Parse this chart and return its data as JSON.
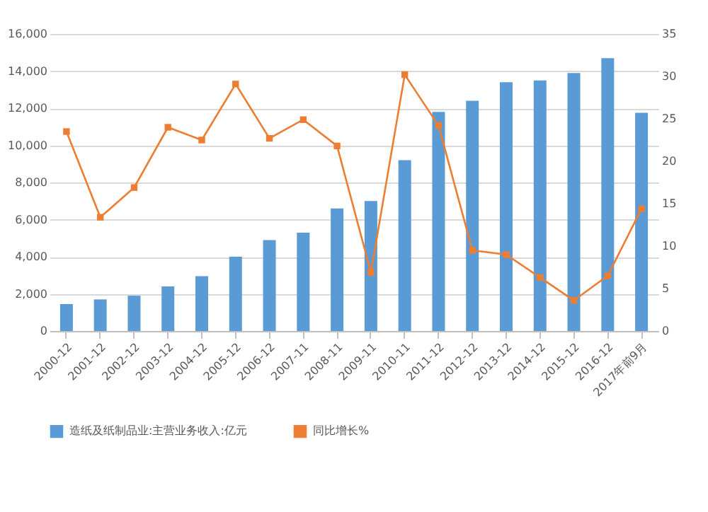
{
  "chart_data": {
    "type": "bar",
    "categories": [
      "2000-12",
      "2001-12",
      "2002-12",
      "2003-12",
      "2004-12",
      "2005-12",
      "2006-12",
      "2007-11",
      "2008-11",
      "2009-11",
      "2010-11",
      "2011-12",
      "2012-12",
      "2013-12",
      "2014-12",
      "2015-12",
      "2016-12",
      "2017年前9月"
    ],
    "series": [
      {
        "name": "造纸及纸制品业:主营业务收入:亿元",
        "color": "#5b9bd5",
        "values": [
          1450,
          1700,
          1900,
          2400,
          2950,
          4000,
          4900,
          5300,
          6600,
          7000,
          9200,
          11800,
          12400,
          13400,
          13500,
          13900,
          14700,
          11750
        ]
      },
      {
        "name": "同比增长%",
        "type": "line",
        "axis": "y2",
        "color": "#ed7d31",
        "marker": "square",
        "values": [
          23.5,
          13.4,
          16.9,
          24.0,
          22.5,
          29.1,
          22.7,
          24.9,
          21.8,
          6.9,
          30.2,
          24.2,
          9.5,
          9.0,
          6.3,
          3.6,
          6.5,
          14.4
        ]
      }
    ],
    "ylim": [
      0,
      16000
    ],
    "yticks": [
      0,
      {
        "value": 2000,
        "label": "2,000"
      },
      {
        "value": 4000,
        "label": "4,000"
      },
      {
        "value": 6000,
        "label": "6,000"
      },
      {
        "value": 8000,
        "label": "8,000"
      },
      {
        "value": 10000,
        "label": "10,000"
      },
      {
        "value": 12000,
        "label": "12,000"
      },
      {
        "value": 14000,
        "label": "14,000"
      },
      {
        "value": 16000,
        "label": "16,000"
      }
    ],
    "y2lim": [
      0,
      35
    ],
    "y2ticks": [
      0,
      5,
      10,
      15,
      20,
      25,
      30,
      35
    ],
    "grid": "y",
    "legend": "bottom"
  }
}
